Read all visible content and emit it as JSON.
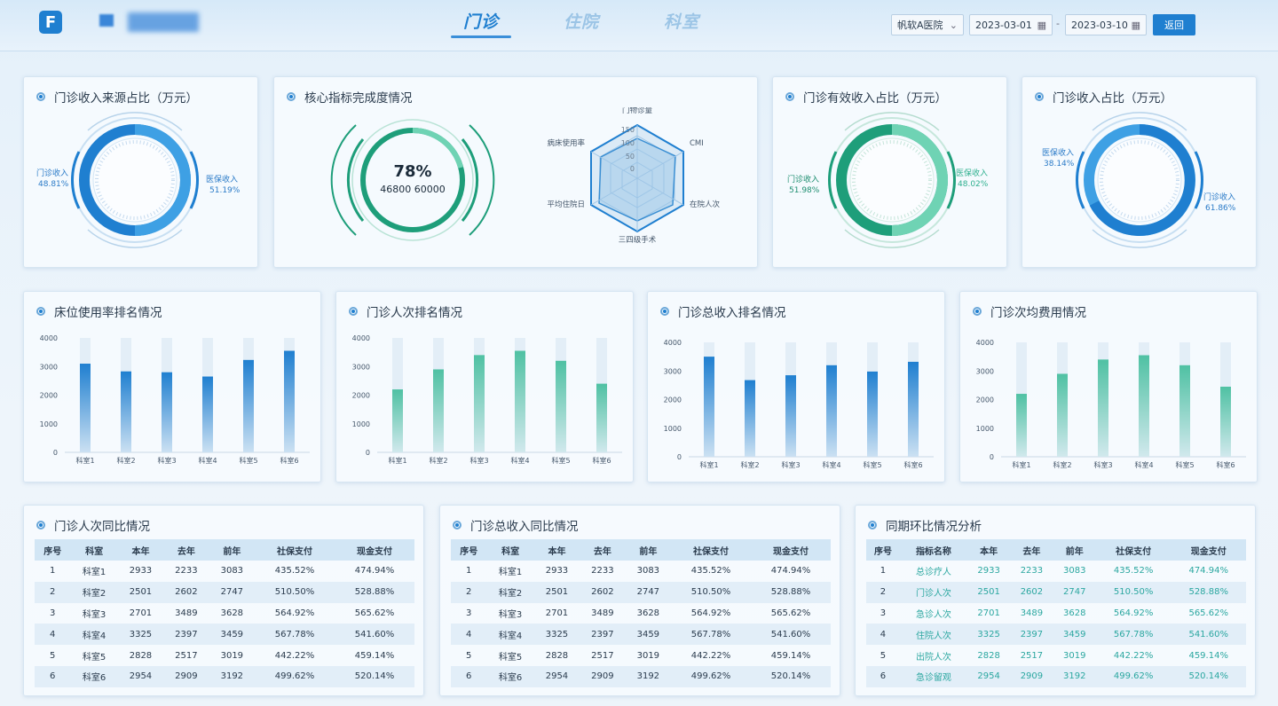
{
  "header": {
    "tabs": [
      {
        "label": "门诊"
      },
      {
        "label": "住院"
      },
      {
        "label": "科室"
      }
    ],
    "hospital_select": "帆软A医院",
    "start_date": "2023-03-01",
    "end_date": "2023-03-10",
    "dash": "-",
    "back_label": "返回"
  },
  "panels": {
    "p1": {
      "title": "门诊收入来源占比（万元）",
      "left_name": "门诊收入",
      "left_pct": "48.81%",
      "right_name": "医保收入",
      "right_pct": "51.19%"
    },
    "p2": {
      "title": "核心指标完成度情况",
      "pct": "78%",
      "values": "46800 60000",
      "radar_axes": [
        "门物诊量",
        "CMI",
        "在院人次",
        "三四级手术",
        "平均住院日",
        "病床使用率"
      ],
      "radar_ticks": [
        "150",
        "100",
        "50",
        "0"
      ]
    },
    "p3": {
      "title": "门诊有效收入占比（万元）",
      "left_name": "门诊收入",
      "left_pct": "51.98%",
      "right_name": "医保收入",
      "right_pct": "48.02%"
    },
    "p4": {
      "title": "门诊收入占比（万元）",
      "left_name": "医保收入",
      "left_pct": "38.14%",
      "right_name": "门诊收入",
      "right_pct": "61.86%"
    }
  },
  "chart_data": [
    {
      "type": "bar",
      "title": "床位使用率排名情况",
      "categories": [
        "科室1",
        "科室2",
        "科室3",
        "科室4",
        "科室5",
        "科室6"
      ],
      "values": [
        3100,
        2830,
        2800,
        2650,
        3230,
        3550
      ],
      "ylim": [
        0,
        4000
      ],
      "yticks": [
        "4000",
        "3000",
        "2000",
        "1000",
        "0"
      ],
      "color": "#1f7fd0"
    },
    {
      "type": "bar",
      "title": "门诊人次排名情况",
      "categories": [
        "科室1",
        "科室2",
        "科室3",
        "科室4",
        "科室5",
        "科室6"
      ],
      "values": [
        2200,
        2900,
        3400,
        3550,
        3200,
        2400
      ],
      "ylim": [
        0,
        4000
      ],
      "yticks": [
        "4000",
        "3000",
        "2000",
        "1000",
        "0"
      ],
      "color": "#4fc1a3"
    },
    {
      "type": "bar",
      "title": "门诊总收入排名情况",
      "categories": [
        "科室1",
        "科室2",
        "科室3",
        "科室4",
        "科室5",
        "科室6"
      ],
      "values": [
        3500,
        2680,
        2850,
        3200,
        2980,
        3320
      ],
      "ylim": [
        0,
        4000
      ],
      "yticks": [
        "4000",
        "3000",
        "2000",
        "1000",
        "0"
      ],
      "color": "#1f7fd0"
    },
    {
      "type": "bar",
      "title": "门诊次均费用情况",
      "categories": [
        "科室1",
        "科室2",
        "科室3",
        "科室4",
        "科室5",
        "科室6"
      ],
      "values": [
        2200,
        2900,
        3400,
        3550,
        3200,
        2450
      ],
      "ylim": [
        0,
        4000
      ],
      "yticks": [
        "4000",
        "3000",
        "2000",
        "1000",
        "0"
      ],
      "color": "#4fc1a3"
    }
  ],
  "tables": [
    {
      "title": "门诊人次同比情况",
      "headers": [
        "序号",
        "科室",
        "本年",
        "去年",
        "前年",
        "社保支付",
        "现金支付"
      ],
      "rows": [
        [
          "1",
          "科室1",
          "2933",
          "2233",
          "3083",
          "435.52%",
          "474.94%"
        ],
        [
          "2",
          "科室2",
          "2501",
          "2602",
          "2747",
          "510.50%",
          "528.88%"
        ],
        [
          "3",
          "科室3",
          "2701",
          "3489",
          "3628",
          "564.92%",
          "565.62%"
        ],
        [
          "4",
          "科室4",
          "3325",
          "2397",
          "3459",
          "567.78%",
          "541.60%"
        ],
        [
          "5",
          "科室5",
          "2828",
          "2517",
          "3019",
          "442.22%",
          "459.14%"
        ],
        [
          "6",
          "科室6",
          "2954",
          "2909",
          "3192",
          "499.62%",
          "520.14%"
        ]
      ]
    },
    {
      "title": "门诊总收入同比情况",
      "headers": [
        "序号",
        "科室",
        "本年",
        "去年",
        "前年",
        "社保支付",
        "现金支付"
      ],
      "rows": [
        [
          "1",
          "科室1",
          "2933",
          "2233",
          "3083",
          "435.52%",
          "474.94%"
        ],
        [
          "2",
          "科室2",
          "2501",
          "2602",
          "2747",
          "510.50%",
          "528.88%"
        ],
        [
          "3",
          "科室3",
          "2701",
          "3489",
          "3628",
          "564.92%",
          "565.62%"
        ],
        [
          "4",
          "科室4",
          "3325",
          "2397",
          "3459",
          "567.78%",
          "541.60%"
        ],
        [
          "5",
          "科室5",
          "2828",
          "2517",
          "3019",
          "442.22%",
          "459.14%"
        ],
        [
          "6",
          "科室6",
          "2954",
          "2909",
          "3192",
          "499.62%",
          "520.14%"
        ]
      ]
    },
    {
      "title": "同期环比情况分析",
      "headers": [
        "序号",
        "指标名称",
        "本年",
        "去年",
        "前年",
        "社保支付",
        "现金支付"
      ],
      "rows": [
        [
          "1",
          "总诊疗人",
          "2933",
          "2233",
          "3083",
          "435.52%",
          "474.94%"
        ],
        [
          "2",
          "门诊人次",
          "2501",
          "2602",
          "2747",
          "510.50%",
          "528.88%"
        ],
        [
          "3",
          "急诊人次",
          "2701",
          "3489",
          "3628",
          "564.92%",
          "565.62%"
        ],
        [
          "4",
          "住院人次",
          "3325",
          "2397",
          "3459",
          "567.78%",
          "541.60%"
        ],
        [
          "5",
          "出院人次",
          "2828",
          "2517",
          "3019",
          "442.22%",
          "459.14%"
        ],
        [
          "6",
          "急诊留观",
          "2954",
          "2909",
          "3192",
          "499.62%",
          "520.14%"
        ]
      ]
    }
  ]
}
